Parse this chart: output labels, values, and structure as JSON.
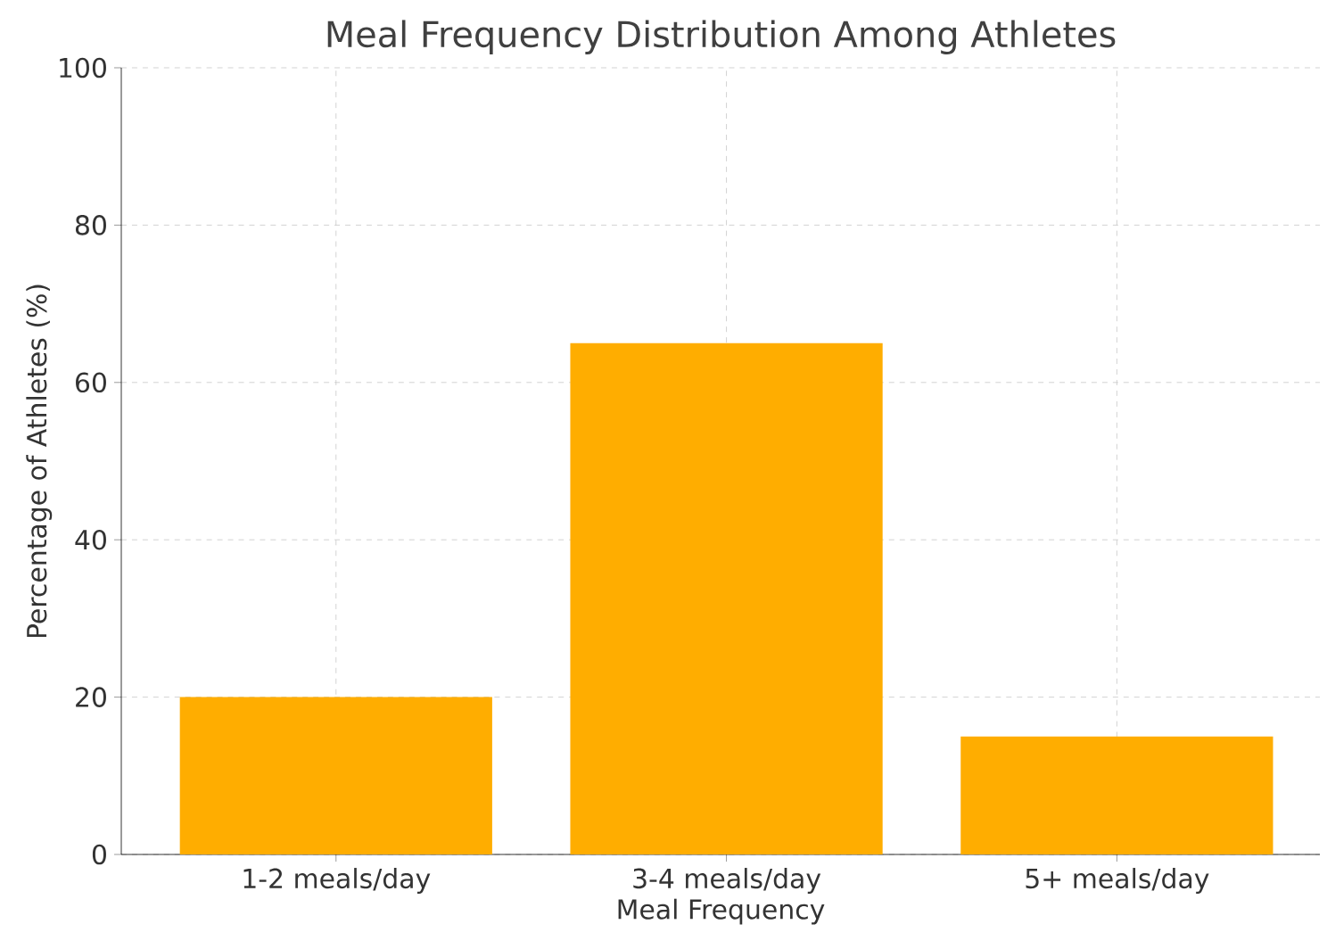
{
  "chart_data": {
    "type": "bar",
    "title": "Meal Frequency Distribution Among Athletes",
    "xlabel": "Meal Frequency",
    "ylabel": "Percentage of Athletes (%)",
    "categories": [
      "1-2 meals/day",
      "3-4 meals/day",
      "5+ meals/day"
    ],
    "values": [
      20,
      65,
      15
    ],
    "color": "#ffad00",
    "ylim": [
      0,
      100
    ],
    "yticks": [
      0,
      20,
      40,
      60,
      80,
      100
    ],
    "grid": true
  }
}
